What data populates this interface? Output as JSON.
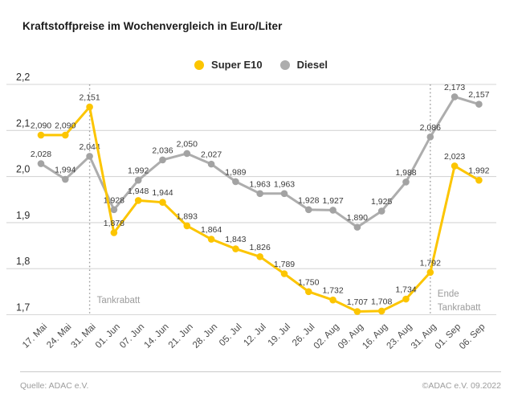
{
  "title": "Kraftstoffpreise im Wochenvergleich in Euro/Liter",
  "legend": [
    {
      "label": "Super E10",
      "color": "#FCC500"
    },
    {
      "label": "Diesel",
      "color": "#ADADAD"
    }
  ],
  "footer": {
    "source": "Quelle: ADAC e.V.",
    "copyright": "©ADAC e.V.  09.2022"
  },
  "colors": {
    "grid": "#d6d6d6",
    "annotation": "#9c9c9c",
    "data_label": "#3a3a3a",
    "x_tick_label": "#4a4a4a",
    "y_tick_label": "#2e2e2e"
  },
  "chart_data": {
    "type": "line",
    "title": "Kraftstoffpreise im Wochenvergleich in Euro/Liter",
    "xlabel": "",
    "ylabel": "Euro/Liter",
    "ylim": [
      1.7,
      2.2
    ],
    "yticks": [
      2.2,
      2.1,
      2.0,
      1.9,
      1.8,
      1.7
    ],
    "grid": true,
    "legend_position": "top-center",
    "categories": [
      "17. Mai",
      "24. Mai",
      "31. Mai",
      "01. Jun",
      "07. Jun",
      "14. Jun",
      "21. Jun",
      "28. Jun",
      "05. Jul",
      "12. Jul",
      "19. Jul",
      "26. Jul",
      "02. Aug",
      "09. Aug",
      "16. Aug",
      "23. Aug",
      "31. Aug",
      "01. Sep",
      "06. Sep"
    ],
    "series": [
      {
        "name": "Super E10",
        "color": "#FCC500",
        "marker_color": "#FCC500",
        "values": [
          2.09,
          2.09,
          2.151,
          1.878,
          1.948,
          1.944,
          1.893,
          1.864,
          1.843,
          1.826,
          1.789,
          1.75,
          1.732,
          1.707,
          1.708,
          1.734,
          1.792,
          2.023,
          1.992
        ]
      },
      {
        "name": "Diesel",
        "color": "#ADADAD",
        "marker_color": "#A3A3A3",
        "values": [
          2.028,
          1.994,
          2.044,
          1.928,
          1.992,
          2.036,
          2.05,
          2.027,
          1.989,
          1.963,
          1.963,
          1.928,
          1.927,
          1.89,
          1.925,
          1.988,
          2.086,
          2.173,
          2.157
        ]
      }
    ],
    "annotations": [
      {
        "type": "vline",
        "x_category": "31. Mai",
        "label_lines": [
          "Tankrabatt"
        ]
      },
      {
        "type": "vline",
        "x_category": "31. Aug",
        "label_lines": [
          "Ende",
          "Tankrabatt"
        ]
      }
    ]
  }
}
